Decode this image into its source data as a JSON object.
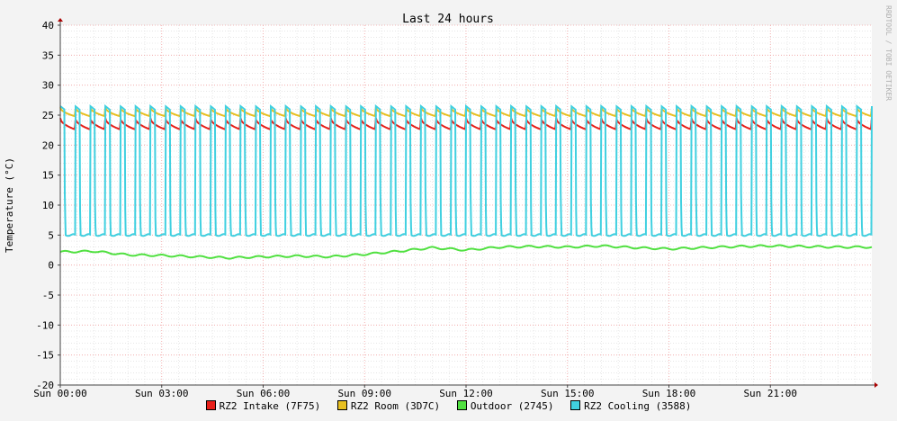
{
  "chart_data": {
    "type": "line",
    "title": "Last 24 hours",
    "ylabel": "Temperature (°C)",
    "watermark": "RRDTOOL / TOBI OETIKER",
    "ylim": [
      -20,
      40
    ],
    "y_ticks": [
      40,
      35,
      30,
      25,
      20,
      15,
      10,
      5,
      0,
      -5,
      -10,
      -15,
      -20
    ],
    "x_tick_labels": [
      "Sun 00:00",
      "Sun 03:00",
      "Sun 06:00",
      "Sun 09:00",
      "Sun 12:00",
      "Sun 15:00",
      "Sun 18:00",
      "Sun 21:00"
    ],
    "x_range_hours": [
      0,
      24
    ],
    "grid": true,
    "legend_position": "bottom",
    "series": [
      {
        "name": "RZ2 Intake (7F75)",
        "color": "#e8201a",
        "pattern": "sawtooth",
        "low": 22.6,
        "high": 24.5,
        "cycles": 54
      },
      {
        "name": "RZ2 Room (3D7C)",
        "color": "#e8c020",
        "pattern": "sawtooth",
        "low": 24.8,
        "high": 26.3,
        "cycles": 54
      },
      {
        "name": "Outdoor (2745)",
        "color": "#50e040",
        "pattern": "trend",
        "points": [
          [
            0,
            2.2
          ],
          [
            1,
            2.3
          ],
          [
            2,
            1.7
          ],
          [
            3,
            1.6
          ],
          [
            4,
            1.4
          ],
          [
            5,
            1.2
          ],
          [
            6,
            1.4
          ],
          [
            7,
            1.5
          ],
          [
            8,
            1.4
          ],
          [
            9,
            1.8
          ],
          [
            10,
            2.3
          ],
          [
            11,
            2.9
          ],
          [
            12,
            2.5
          ],
          [
            13,
            3.0
          ],
          [
            14,
            3.1
          ],
          [
            15,
            3.0
          ],
          [
            16,
            3.2
          ],
          [
            17,
            2.9
          ],
          [
            18,
            2.7
          ],
          [
            19,
            2.9
          ],
          [
            20,
            3.1
          ],
          [
            21,
            3.2
          ],
          [
            22,
            3.1
          ],
          [
            23,
            3.0
          ],
          [
            24,
            3.0
          ]
        ]
      },
      {
        "name": "RZ2 Cooling (3588)",
        "color": "#40d0e0",
        "pattern": "pulse",
        "low": 5.0,
        "high": 26.5,
        "cycles": 54,
        "duty": 0.3
      }
    ]
  }
}
